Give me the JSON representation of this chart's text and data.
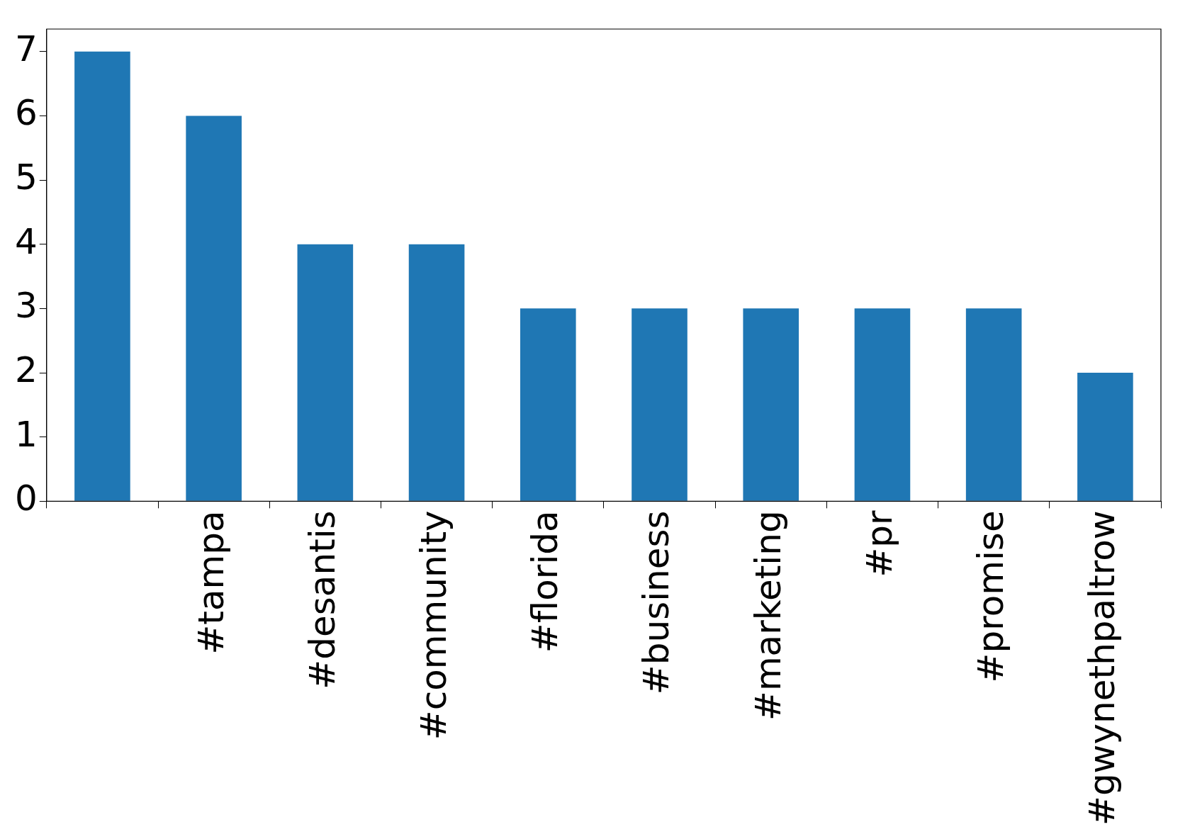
{
  "chart_data": {
    "type": "bar",
    "categories": [
      null,
      "#tampa",
      "#desantis",
      "#community",
      "#florida",
      "#business",
      "#marketing",
      "#pr",
      "#promise",
      "#gwynethpaltrow"
    ],
    "values": [
      7,
      6,
      4,
      4,
      3,
      3,
      3,
      3,
      3,
      2
    ],
    "color": "#1f77b4",
    "ylim": [
      0,
      7.35
    ],
    "yticks": [
      0,
      1,
      2,
      3,
      4,
      5,
      6,
      7
    ],
    "grid": false,
    "legend": false
  }
}
